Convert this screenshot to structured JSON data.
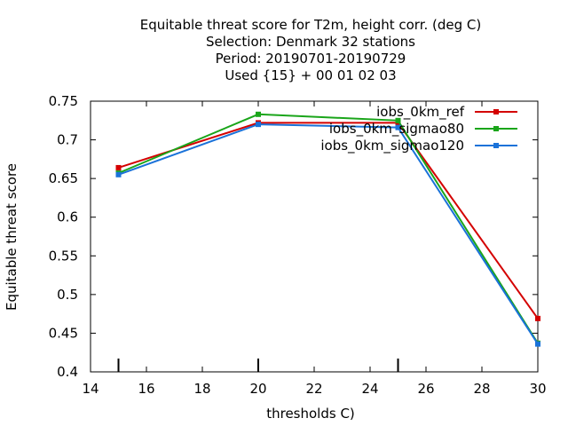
{
  "chart_data": {
    "type": "line",
    "title_lines": [
      "Equitable threat score  for T2m, height corr. (deg C)",
      "Selection: Denmark     32 stations",
      "Period: 20190701-20190729",
      "Used {15} + 00 01 02 03"
    ],
    "xlabel": "thresholds C)",
    "ylabel": "Equitable threat score",
    "xlim": [
      14,
      30
    ],
    "ylim": [
      0.4,
      0.75
    ],
    "xticks": [
      14,
      16,
      18,
      20,
      22,
      24,
      26,
      28,
      30
    ],
    "yticks": [
      0.4,
      0.45,
      0.5,
      0.55,
      0.6,
      0.65,
      0.7,
      0.75
    ],
    "xtick_labels": [
      "14",
      "16",
      "18",
      "20",
      "22",
      "24",
      "26",
      "28",
      "30"
    ],
    "ytick_labels": [
      "0.4",
      "0.45",
      "0.5",
      "0.55",
      "0.6",
      "0.65",
      "0.7",
      "0.75"
    ],
    "threshold_markers": [
      15,
      20,
      25
    ],
    "legend_position": "top-right",
    "grid": false,
    "series": [
      {
        "name": "iobs_0km_ref",
        "color": "#d40000",
        "x": [
          15,
          20,
          25,
          30
        ],
        "y": [
          0.664,
          0.722,
          0.722,
          0.469
        ]
      },
      {
        "name": "iobs_0km_sigmao80",
        "color": "#1aa51a",
        "x": [
          15,
          20,
          25,
          30
        ],
        "y": [
          0.657,
          0.733,
          0.725,
          0.437
        ]
      },
      {
        "name": "iobs_0km_sigmao120",
        "color": "#1a72d9",
        "x": [
          15,
          20,
          25,
          30
        ],
        "y": [
          0.655,
          0.72,
          0.716,
          0.436
        ]
      }
    ]
  }
}
